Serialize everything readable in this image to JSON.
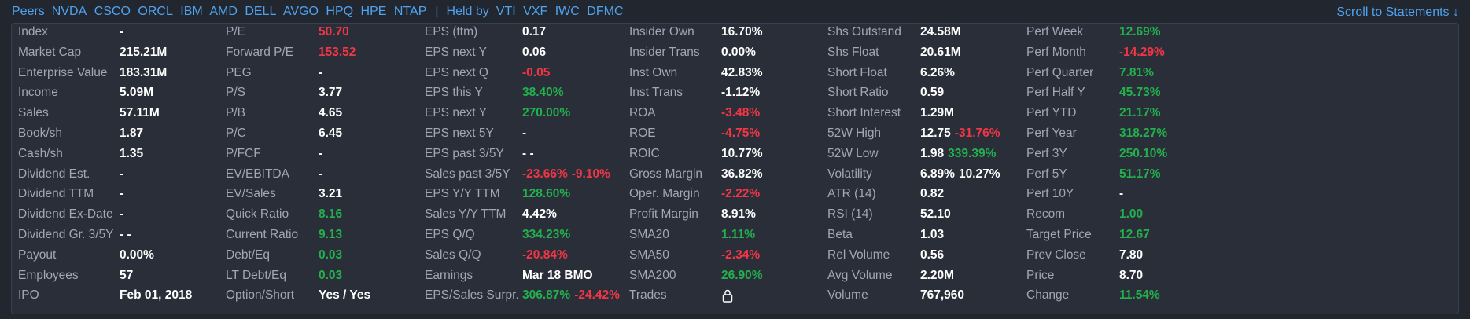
{
  "header": {
    "peers_label": "Peers",
    "peers": [
      "NVDA",
      "CSCO",
      "ORCL",
      "IBM",
      "AMD",
      "DELL",
      "AVGO",
      "HPQ",
      "HPE",
      "NTAP"
    ],
    "separator": "|",
    "held_by_label": "Held by",
    "held_by": [
      "VTI",
      "VXF",
      "IWC",
      "DFMC"
    ],
    "scroll_link": "Scroll to Statements ↓"
  },
  "colors": {
    "positive": "#22b14c",
    "negative": "#f23645",
    "neutral": "#ffffff",
    "label": "#a3a7b3",
    "link": "#4fa3ef"
  },
  "rows": [
    [
      {
        "label": "Index",
        "value": "-",
        "tone": "neu"
      },
      {
        "label": "P/E",
        "value": "50.70",
        "tone": "neg"
      },
      {
        "label": "EPS (ttm)",
        "value": "0.17",
        "tone": "neu"
      },
      {
        "label": "Insider Own",
        "value": "16.70%",
        "tone": "neu"
      },
      {
        "label": "Shs Outstand",
        "value": "24.58M",
        "tone": "neu"
      },
      {
        "label": "Perf Week",
        "value": "12.69%",
        "tone": "pos"
      }
    ],
    [
      {
        "label": "Market Cap",
        "value": "215.21M",
        "tone": "neu"
      },
      {
        "label": "Forward P/E",
        "value": "153.52",
        "tone": "neg"
      },
      {
        "label": "EPS next Y",
        "value": "0.06",
        "tone": "neu"
      },
      {
        "label": "Insider Trans",
        "value": "0.00%",
        "tone": "neu"
      },
      {
        "label": "Shs Float",
        "value": "20.61M",
        "tone": "neu"
      },
      {
        "label": "Perf Month",
        "value": "-14.29%",
        "tone": "neg"
      }
    ],
    [
      {
        "label": "Enterprise Value",
        "value": "183.31M",
        "tone": "neu"
      },
      {
        "label": "PEG",
        "value": "-",
        "tone": "neu"
      },
      {
        "label": "EPS next Q",
        "value": "-0.05",
        "tone": "neg"
      },
      {
        "label": "Inst Own",
        "value": "42.83%",
        "tone": "neu"
      },
      {
        "label": "Short Float",
        "value": "6.26%",
        "tone": "neu"
      },
      {
        "label": "Perf Quarter",
        "value": "7.81%",
        "tone": "pos"
      }
    ],
    [
      {
        "label": "Income",
        "value": "5.09M",
        "tone": "neu"
      },
      {
        "label": "P/S",
        "value": "3.77",
        "tone": "neu"
      },
      {
        "label": "EPS this Y",
        "value": "38.40%",
        "tone": "pos"
      },
      {
        "label": "Inst Trans",
        "value": "-1.12%",
        "tone": "neu"
      },
      {
        "label": "Short Ratio",
        "value": "0.59",
        "tone": "neu"
      },
      {
        "label": "Perf Half Y",
        "value": "45.73%",
        "tone": "pos"
      }
    ],
    [
      {
        "label": "Sales",
        "value": "57.11M",
        "tone": "neu"
      },
      {
        "label": "P/B",
        "value": "4.65",
        "tone": "neu"
      },
      {
        "label": "EPS next Y",
        "value": "270.00%",
        "tone": "pos"
      },
      {
        "label": "ROA",
        "value": "-3.48%",
        "tone": "neg"
      },
      {
        "label": "Short Interest",
        "value": "1.29M",
        "tone": "neu"
      },
      {
        "label": "Perf YTD",
        "value": "21.17%",
        "tone": "pos"
      }
    ],
    [
      {
        "label": "Book/sh",
        "value": "1.87",
        "tone": "neu"
      },
      {
        "label": "P/C",
        "value": "6.45",
        "tone": "neu"
      },
      {
        "label": "EPS next 5Y",
        "value": "-",
        "tone": "neu"
      },
      {
        "label": "ROE",
        "value": "-4.75%",
        "tone": "neg"
      },
      {
        "label": "52W High",
        "value": "12.75",
        "tone": "neu",
        "value2": "-31.76%",
        "tone2": "neg"
      },
      {
        "label": "Perf Year",
        "value": "318.27%",
        "tone": "pos"
      }
    ],
    [
      {
        "label": "Cash/sh",
        "value": "1.35",
        "tone": "neu"
      },
      {
        "label": "P/FCF",
        "value": "-",
        "tone": "neu"
      },
      {
        "label": "EPS past 3/5Y",
        "value": "- -",
        "tone": "neu"
      },
      {
        "label": "ROIC",
        "value": "10.77%",
        "tone": "neu"
      },
      {
        "label": "52W Low",
        "value": "1.98",
        "tone": "neu",
        "value2": "339.39%",
        "tone2": "pos"
      },
      {
        "label": "Perf 3Y",
        "value": "250.10%",
        "tone": "pos"
      }
    ],
    [
      {
        "label": "Dividend Est.",
        "value": "-",
        "tone": "neu"
      },
      {
        "label": "EV/EBITDA",
        "value": "-",
        "tone": "neu"
      },
      {
        "label": "Sales past 3/5Y",
        "value": "-23.66%",
        "tone": "neg",
        "value2": "-9.10%",
        "tone2": "neg"
      },
      {
        "label": "Gross Margin",
        "value": "36.82%",
        "tone": "neu"
      },
      {
        "label": "Volatility",
        "value": "6.89%",
        "tone": "neu",
        "value2": "10.27%",
        "tone2": "neu"
      },
      {
        "label": "Perf 5Y",
        "value": "51.17%",
        "tone": "pos"
      }
    ],
    [
      {
        "label": "Dividend TTM",
        "value": "-",
        "tone": "neu"
      },
      {
        "label": "EV/Sales",
        "value": "3.21",
        "tone": "neu"
      },
      {
        "label": "EPS Y/Y TTM",
        "value": "128.60%",
        "tone": "pos"
      },
      {
        "label": "Oper. Margin",
        "value": "-2.22%",
        "tone": "neg"
      },
      {
        "label": "ATR (14)",
        "value": "0.82",
        "tone": "neu"
      },
      {
        "label": "Perf 10Y",
        "value": "-",
        "tone": "neu"
      }
    ],
    [
      {
        "label": "Dividend Ex-Date",
        "value": "-",
        "tone": "neu"
      },
      {
        "label": "Quick Ratio",
        "value": "8.16",
        "tone": "pos"
      },
      {
        "label": "Sales Y/Y TTM",
        "value": "4.42%",
        "tone": "neu"
      },
      {
        "label": "Profit Margin",
        "value": "8.91%",
        "tone": "neu"
      },
      {
        "label": "RSI (14)",
        "value": "52.10",
        "tone": "neu"
      },
      {
        "label": "Recom",
        "value": "1.00",
        "tone": "pos"
      }
    ],
    [
      {
        "label": "Dividend Gr. 3/5Y",
        "value": "- -",
        "tone": "neu"
      },
      {
        "label": "Current Ratio",
        "value": "9.13",
        "tone": "pos"
      },
      {
        "label": "EPS Q/Q",
        "value": "334.23%",
        "tone": "pos"
      },
      {
        "label": "SMA20",
        "value": "1.11%",
        "tone": "pos"
      },
      {
        "label": "Beta",
        "value": "1.03",
        "tone": "neu"
      },
      {
        "label": "Target Price",
        "value": "12.67",
        "tone": "pos"
      }
    ],
    [
      {
        "label": "Payout",
        "value": "0.00%",
        "tone": "neu"
      },
      {
        "label": "Debt/Eq",
        "value": "0.03",
        "tone": "pos"
      },
      {
        "label": "Sales Q/Q",
        "value": "-20.84%",
        "tone": "neg"
      },
      {
        "label": "SMA50",
        "value": "-2.34%",
        "tone": "neg"
      },
      {
        "label": "Rel Volume",
        "value": "0.56",
        "tone": "neu"
      },
      {
        "label": "Prev Close",
        "value": "7.80",
        "tone": "neu"
      }
    ],
    [
      {
        "label": "Employees",
        "value": "57",
        "tone": "neu"
      },
      {
        "label": "LT Debt/Eq",
        "value": "0.03",
        "tone": "pos"
      },
      {
        "label": "Earnings",
        "value": "Mar 18 BMO",
        "tone": "neu"
      },
      {
        "label": "SMA200",
        "value": "26.90%",
        "tone": "pos"
      },
      {
        "label": "Avg Volume",
        "value": "2.20M",
        "tone": "neu"
      },
      {
        "label": "Price",
        "value": "8.70",
        "tone": "neu"
      }
    ],
    [
      {
        "label": "IPO",
        "value": "Feb 01, 2018",
        "tone": "neu"
      },
      {
        "label": "Option/Short",
        "value": "Yes / Yes",
        "tone": "neu"
      },
      {
        "label": "EPS/Sales Surpr.",
        "value": "306.87%",
        "tone": "pos",
        "value2": "-24.42%",
        "tone2": "neg"
      },
      {
        "label": "Trades",
        "value": "",
        "tone": "neu",
        "icon": "lock-icon"
      },
      {
        "label": "Volume",
        "value": "767,960",
        "tone": "neu"
      },
      {
        "label": "Change",
        "value": "11.54%",
        "tone": "pos"
      }
    ]
  ]
}
